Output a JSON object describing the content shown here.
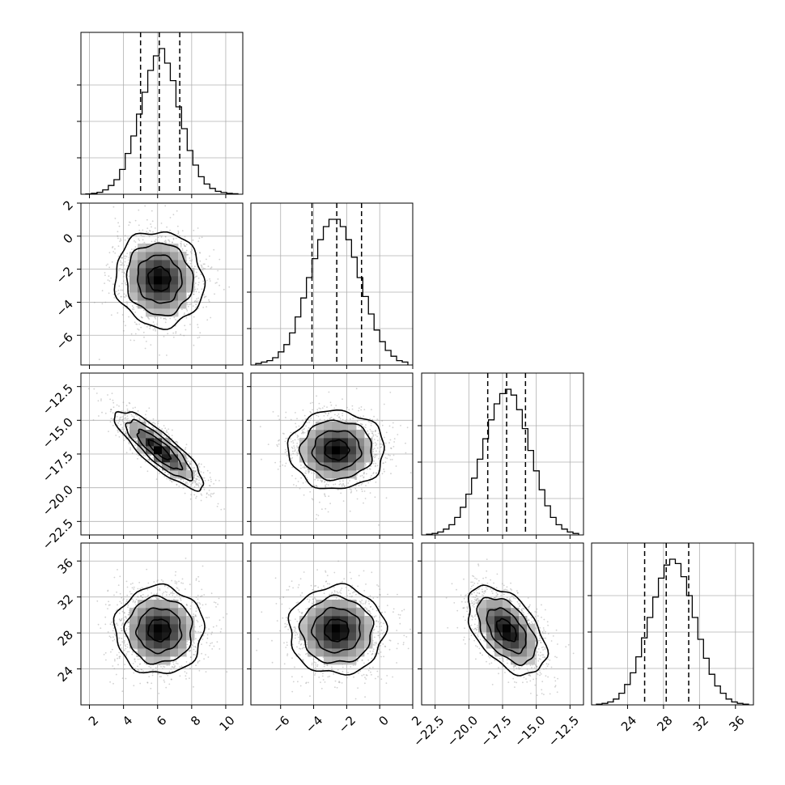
{
  "chart_data": {
    "type": "corner",
    "description_source": "corner plot of 4 parameters: 1D histograms on the diagonal, 2D density histograms with contours below",
    "grid": true,
    "parameters": [
      {
        "range": [
          1.5,
          11.0
        ],
        "ticks": [
          2,
          4,
          6,
          8,
          10
        ],
        "tick_labels": [
          "2",
          "4",
          "6",
          "8",
          "10"
        ],
        "quantiles": [
          5.0,
          6.1,
          7.3
        ],
        "hist_bins": [
          0.002,
          0.006,
          0.013,
          0.03,
          0.06,
          0.1,
          0.17,
          0.28,
          0.4,
          0.55,
          0.7,
          0.85,
          0.95,
          1.0,
          0.9,
          0.78,
          0.6,
          0.45,
          0.3,
          0.2,
          0.12,
          0.07,
          0.04,
          0.02,
          0.012,
          0.006,
          0.003
        ]
      },
      {
        "range": [
          -7.8,
          2.0
        ],
        "ticks": [
          -6,
          -4,
          -2,
          0,
          2
        ],
        "tick_labels": [
          "−6",
          "−4",
          "−2",
          "0",
          "2"
        ],
        "quantiles": [
          -4.1,
          -2.6,
          -1.1
        ],
        "hist_bins": [
          0.01,
          0.02,
          0.03,
          0.05,
          0.09,
          0.14,
          0.22,
          0.33,
          0.46,
          0.6,
          0.73,
          0.86,
          0.95,
          1.0,
          1.0,
          0.95,
          0.86,
          0.74,
          0.6,
          0.47,
          0.35,
          0.24,
          0.16,
          0.1,
          0.06,
          0.03,
          0.02
        ]
      },
      {
        "range": [
          -23.5,
          -11.5
        ],
        "ticks": [
          -22.5,
          -20.0,
          -17.5,
          -15.0,
          -12.5
        ],
        "tick_labels": [
          "−22.5",
          "−20.0",
          "−17.5",
          "−15.0",
          "−12.5"
        ],
        "quantiles": [
          -18.6,
          -17.2,
          -15.8
        ],
        "hist_bins": [
          0.005,
          0.01,
          0.02,
          0.04,
          0.07,
          0.12,
          0.19,
          0.28,
          0.39,
          0.52,
          0.66,
          0.79,
          0.9,
          0.97,
          1.0,
          0.96,
          0.86,
          0.73,
          0.58,
          0.44,
          0.31,
          0.2,
          0.12,
          0.07,
          0.04,
          0.02,
          0.01
        ]
      },
      {
        "range": [
          20.0,
          38.0
        ],
        "ticks": [
          24,
          28,
          32,
          36
        ],
        "tick_labels": [
          "24",
          "28",
          "32",
          "36"
        ],
        "quantiles": [
          25.9,
          28.3,
          30.8
        ],
        "hist_bins": [
          0.005,
          0.01,
          0.02,
          0.04,
          0.08,
          0.14,
          0.22,
          0.33,
          0.46,
          0.6,
          0.74,
          0.87,
          0.96,
          1.0,
          0.97,
          0.88,
          0.75,
          0.6,
          0.45,
          0.32,
          0.21,
          0.13,
          0.08,
          0.04,
          0.02,
          0.01,
          0.005
        ]
      }
    ],
    "pairs": [
      {
        "x": 0,
        "y": 1,
        "mean": [
          6.1,
          -2.6
        ],
        "sd": [
          1.3,
          1.45
        ],
        "rho": -0.05
      },
      {
        "x": 0,
        "y": 2,
        "mean": [
          6.1,
          -17.2
        ],
        "sd": [
          1.3,
          1.45
        ],
        "rho": -0.85
      },
      {
        "x": 1,
        "y": 2,
        "mean": [
          -2.6,
          -17.2
        ],
        "sd": [
          1.45,
          1.45
        ],
        "rho": 0.0
      },
      {
        "x": 0,
        "y": 3,
        "mean": [
          6.1,
          28.3
        ],
        "sd": [
          1.3,
          2.45
        ],
        "rho": 0.0
      },
      {
        "x": 1,
        "y": 3,
        "mean": [
          -2.6,
          28.3
        ],
        "sd": [
          1.45,
          2.45
        ],
        "rho": 0.0
      },
      {
        "x": 2,
        "y": 3,
        "mean": [
          -17.2,
          28.3
        ],
        "sd": [
          1.45,
          2.45
        ],
        "rho": -0.5
      }
    ],
    "contour_sigma_levels": [
      0.5,
      1.0,
      1.5,
      2.0
    ],
    "colors": {
      "line": "#000000",
      "grid": "#b0b0b0",
      "points": "#9a9a9a"
    }
  }
}
